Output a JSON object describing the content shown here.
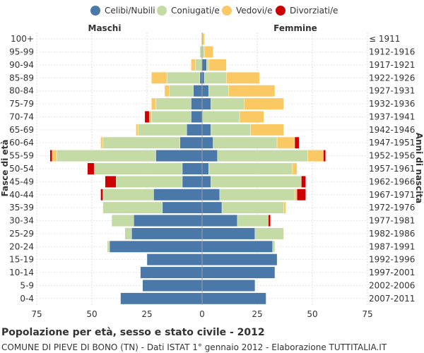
{
  "chart_data": {
    "type": "bar",
    "orientation": "horizontal-population-pyramid",
    "title": "Popolazione per età, sesso e stato civile - 2012",
    "subtitle": "COMUNE DI PIEVE DI BONO (TN) - Dati ISTAT 1° gennaio 2012 - Elaborazione TUTTITALIA.IT",
    "left_label": "Maschi",
    "right_label": "Femmine",
    "ylabel_left": "Fasce di età",
    "ylabel_right": "Anni di nascita",
    "xlim": [
      -75,
      75
    ],
    "x_ticks": [
      -75,
      -50,
      -25,
      0,
      25,
      50,
      75
    ],
    "x_tick_labels": [
      "75",
      "50",
      "25",
      "0",
      "25",
      "50",
      "75"
    ],
    "legend": [
      {
        "name": "Celibi/Nubili",
        "color": "#4a78a8"
      },
      {
        "name": "Coniugati/e",
        "color": "#c5dba6"
      },
      {
        "name": "Vedovi/e",
        "color": "#fbc964"
      },
      {
        "name": "Divorziati/e",
        "color": "#cc0000"
      }
    ],
    "age_groups": [
      "100+",
      "95-99",
      "90-94",
      "85-89",
      "80-84",
      "75-79",
      "70-74",
      "65-69",
      "60-64",
      "55-59",
      "50-54",
      "45-49",
      "40-44",
      "35-39",
      "30-34",
      "25-29",
      "20-24",
      "15-19",
      "10-14",
      "5-9",
      "0-4"
    ],
    "birth_years": [
      "≤ 1911",
      "1912-1916",
      "1917-1921",
      "1922-1926",
      "1927-1931",
      "1932-1936",
      "1937-1941",
      "1942-1946",
      "1947-1951",
      "1952-1956",
      "1957-1961",
      "1962-1966",
      "1967-1971",
      "1972-1976",
      "1977-1981",
      "1982-1986",
      "1987-1991",
      "1992-1996",
      "1997-2001",
      "2002-2006",
      "2007-2011"
    ],
    "males": {
      "celibi": [
        0,
        0,
        0,
        1,
        4,
        5,
        5,
        7,
        10,
        21,
        9,
        9,
        22,
        18,
        31,
        32,
        42,
        25,
        28,
        27,
        37
      ],
      "coniugati": [
        0,
        1,
        3,
        15,
        11,
        16,
        18,
        22,
        35,
        45,
        40,
        30,
        23,
        27,
        10,
        3,
        1,
        0,
        0,
        0,
        0
      ],
      "vedovi": [
        0,
        0,
        2,
        7,
        2,
        2,
        1,
        1,
        1,
        2,
        0,
        0,
        0,
        0,
        0,
        0,
        0,
        0,
        0,
        0,
        0
      ],
      "divorziati": [
        0,
        0,
        0,
        0,
        0,
        0,
        2,
        0,
        0,
        1,
        3,
        5,
        1,
        0,
        0,
        0,
        0,
        0,
        0,
        0,
        0
      ]
    },
    "females": {
      "nubili": [
        0,
        0,
        2,
        1,
        3,
        4,
        0,
        4,
        5,
        7,
        3,
        4,
        8,
        9,
        16,
        24,
        32,
        34,
        33,
        24,
        29
      ],
      "coniugate": [
        0,
        1,
        1,
        10,
        9,
        15,
        17,
        18,
        29,
        41,
        38,
        41,
        34,
        28,
        14,
        13,
        1,
        0,
        0,
        0,
        0
      ],
      "vedove": [
        1,
        4,
        8,
        15,
        21,
        18,
        11,
        15,
        8,
        7,
        2,
        0,
        1,
        1,
        0,
        0,
        0,
        0,
        0,
        0,
        0
      ],
      "divorziate": [
        0,
        0,
        0,
        0,
        0,
        0,
        0,
        0,
        2,
        1,
        0,
        2,
        4,
        0,
        1,
        0,
        0,
        0,
        0,
        0,
        0
      ]
    }
  }
}
